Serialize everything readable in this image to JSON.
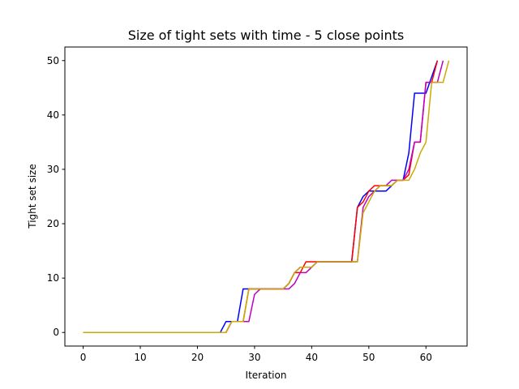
{
  "chart_data": {
    "type": "line",
    "title": "Size of tight sets with time - 5 close points",
    "xlabel": "Iteration",
    "ylabel": "Tight set size",
    "xlim": [
      -3.2,
      67.2
    ],
    "ylim": [
      -2.5,
      52.5
    ],
    "xticks": [
      0,
      10,
      20,
      30,
      40,
      50,
      60
    ],
    "yticks": [
      0,
      10,
      20,
      30,
      40,
      50
    ],
    "grid": false,
    "legend": "none",
    "series": [
      {
        "color": "#0000ff",
        "x": [
          0,
          24,
          25,
          26,
          27,
          28,
          29,
          30,
          35,
          36,
          37,
          38,
          39,
          40,
          41,
          46,
          47,
          48,
          49,
          50,
          51,
          52,
          53,
          54,
          55,
          56,
          57,
          58,
          59,
          60,
          61,
          62
        ],
        "y": [
          0,
          0,
          2,
          2,
          2,
          8,
          8,
          8,
          8,
          9,
          11,
          12,
          12,
          12,
          13,
          13,
          13,
          23,
          25,
          26,
          26,
          26,
          26,
          27,
          28,
          28,
          33,
          44,
          44,
          44,
          47,
          50
        ]
      },
      {
        "color": "#ff0000",
        "x": [
          0,
          25,
          26,
          27,
          28,
          29,
          30,
          35,
          36,
          37,
          38,
          39,
          40,
          41,
          47,
          48,
          49,
          50,
          51,
          52,
          53,
          54,
          55,
          56,
          57,
          58,
          59,
          60,
          61,
          62
        ],
        "y": [
          0,
          0,
          2,
          2,
          2,
          8,
          8,
          8,
          9,
          11,
          11,
          13,
          13,
          13,
          13,
          23,
          24,
          26,
          27,
          27,
          27,
          27,
          28,
          28,
          29,
          35,
          35,
          46,
          46,
          50
        ]
      },
      {
        "color": "#bf00bf",
        "x": [
          0,
          25,
          26,
          27,
          28,
          29,
          30,
          31,
          35,
          36,
          37,
          38,
          39,
          40,
          41,
          47,
          48,
          49,
          50,
          51,
          52,
          53,
          54,
          55,
          56,
          57,
          58,
          59,
          60,
          61,
          62,
          63
        ],
        "y": [
          0,
          0,
          2,
          2,
          2,
          2,
          7,
          8,
          8,
          8,
          9,
          11,
          11,
          12,
          13,
          13,
          13,
          23,
          25,
          26,
          27,
          27,
          28,
          28,
          28,
          30,
          35,
          35,
          46,
          46,
          46,
          50
        ]
      },
      {
        "color": "#ccaa00",
        "x": [
          0,
          25,
          26,
          27,
          28,
          29,
          30,
          35,
          36,
          37,
          38,
          39,
          40,
          41,
          48,
          49,
          50,
          51,
          52,
          53,
          54,
          55,
          56,
          57,
          58,
          59,
          60,
          61,
          62,
          63,
          64
        ],
        "y": [
          0,
          0,
          2,
          2,
          2,
          8,
          8,
          8,
          9,
          11,
          12,
          12,
          12,
          13,
          13,
          22,
          24,
          26,
          27,
          27,
          27,
          28,
          28,
          28,
          30,
          33,
          35,
          46,
          46,
          46,
          50
        ]
      }
    ]
  }
}
